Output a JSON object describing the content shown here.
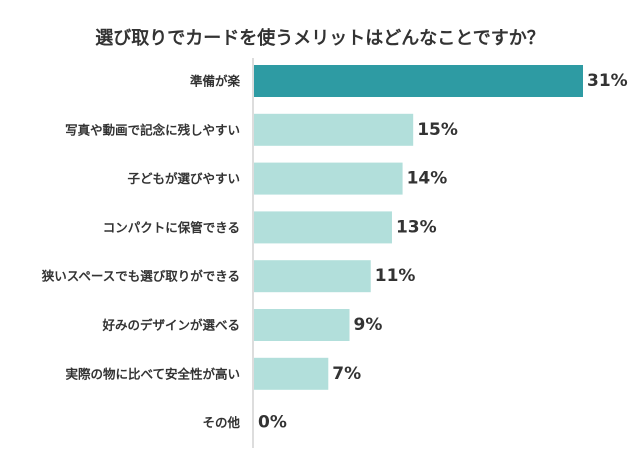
{
  "chart_data": {
    "type": "bar",
    "orientation": "horizontal",
    "title": "選び取りでカードを使うメリットはどんなことですか？",
    "categories": [
      "準備が楽",
      "写真や動画で記念に残しやすい",
      "子どもが選びやすい",
      "コンパクトに保管できる",
      "狭いスペースでも選び取りができる",
      "好みのデザインが選べる",
      "実際の物に比べて安全性が高い",
      "その他"
    ],
    "values": [
      31,
      15,
      14,
      13,
      11,
      9,
      7,
      0
    ],
    "value_labels": [
      "31%",
      "15%",
      "14%",
      "13%",
      "11%",
      "9%",
      "7%",
      "0%"
    ],
    "unit": "%",
    "xlim": [
      0,
      31
    ],
    "grid": false,
    "legend": "none",
    "colors": {
      "highlight": "#2e9ba3",
      "default": "#b2dfdb"
    }
  }
}
